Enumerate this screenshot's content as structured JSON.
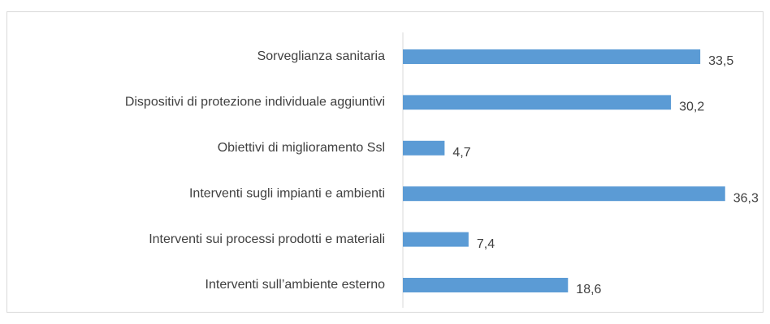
{
  "chart_data": {
    "type": "barh",
    "categories": [
      "Sorveglianza sanitaria",
      "Dispositivi di protezione individuale aggiuntivi",
      "Obiettivi di miglioramento Ssl",
      "Interventi sugli impianti e ambienti",
      "Interventi sui processi prodotti e materiali",
      "Interventi sull’ambiente esterno"
    ],
    "values": [
      33.5,
      30.2,
      4.7,
      36.3,
      7.4,
      18.6
    ],
    "value_labels": [
      "33,5",
      "30,2",
      "4,7",
      "36,3",
      "7,4",
      "18,6"
    ],
    "color": "#5b9bd5"
  }
}
